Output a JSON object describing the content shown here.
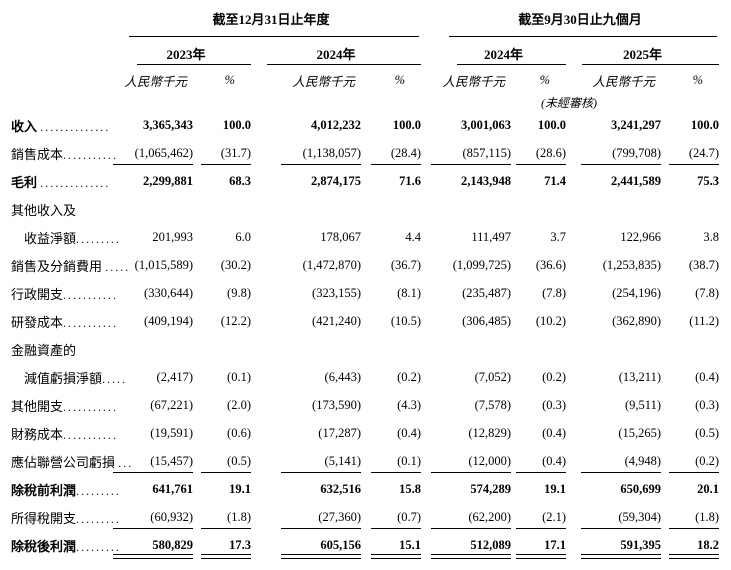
{
  "table": {
    "groups": [
      {
        "title": "截至12月31日止年度",
        "years": [
          "2023年",
          "2024年"
        ]
      },
      {
        "title": "截至9月30日止九個月",
        "years": [
          "2024年",
          "2025年"
        ]
      }
    ],
    "unit_label": "人民幣千元",
    "pct_label": "%",
    "unaudited_note": "(未經審核)",
    "rows": [
      {
        "label": "收入 ",
        "leader": "..............",
        "bold": true,
        "values": [
          "3,365,343",
          "100.0",
          "4,012,232",
          "100.0",
          "3,001,063",
          "100.0",
          "3,241,297",
          "100.0"
        ]
      },
      {
        "label": "銷售成本",
        "leader": "...........",
        "rule": "single",
        "values": [
          "(1,065,462)",
          "(31.7)",
          "(1,138,057)",
          "(28.4)",
          "(857,115)",
          "(28.6)",
          "(799,708)",
          "(24.7)"
        ]
      },
      {
        "label": "毛利 ",
        "leader": "..............",
        "bold": true,
        "values": [
          "2,299,881",
          "68.3",
          "2,874,175",
          "71.6",
          "2,143,948",
          "71.4",
          "2,441,589",
          "75.3"
        ]
      },
      {
        "label": "其他收入及",
        "leader": "",
        "values": null
      },
      {
        "label": "收益淨額",
        "leader": ".........",
        "indent": true,
        "values": [
          "201,993",
          "6.0",
          "178,067",
          "4.4",
          "111,497",
          "3.7",
          "122,966",
          "3.8"
        ]
      },
      {
        "label": "銷售及分銷費用 ",
        "leader": ".....",
        "values": [
          "(1,015,589)",
          "(30.2)",
          "(1,472,870)",
          "(36.7)",
          "(1,099,725)",
          "(36.6)",
          "(1,253,835)",
          "(38.7)"
        ]
      },
      {
        "label": "行政開支",
        "leader": "...........",
        "values": [
          "(330,644)",
          "(9.8)",
          "(323,155)",
          "(8.1)",
          "(235,487)",
          "(7.8)",
          "(254,196)",
          "(7.8)"
        ]
      },
      {
        "label": "研發成本",
        "leader": "...........",
        "values": [
          "(409,194)",
          "(12.2)",
          "(421,240)",
          "(10.5)",
          "(306,485)",
          "(10.2)",
          "(362,890)",
          "(11.2)"
        ]
      },
      {
        "label": "金融資產的",
        "leader": "",
        "values": null
      },
      {
        "label": "減值虧損淨額",
        "leader": ".....",
        "indent": true,
        "values": [
          "(2,417)",
          "(0.1)",
          "(6,443)",
          "(0.2)",
          "(7,052)",
          "(0.2)",
          "(13,211)",
          "(0.4)"
        ]
      },
      {
        "label": "其他開支",
        "leader": "...........",
        "values": [
          "(67,221)",
          "(2.0)",
          "(173,590)",
          "(4.3)",
          "(7,578)",
          "(0.3)",
          "(9,511)",
          "(0.3)"
        ]
      },
      {
        "label": "財務成本",
        "leader": "...........",
        "values": [
          "(19,591)",
          "(0.6)",
          "(17,287)",
          "(0.4)",
          "(12,829)",
          "(0.4)",
          "(15,265)",
          "(0.5)"
        ]
      },
      {
        "label": "應佔聯營公司虧損 ",
        "leader": "...",
        "rule": "single",
        "values": [
          "(15,457)",
          "(0.5)",
          "(5,141)",
          "(0.1)",
          "(12,000)",
          "(0.4)",
          "(4,948)",
          "(0.2)"
        ]
      },
      {
        "label": "除稅前利潤",
        "leader": ".........",
        "bold": true,
        "values": [
          "641,761",
          "19.1",
          "632,516",
          "15.8",
          "574,289",
          "19.1",
          "650,699",
          "20.1"
        ]
      },
      {
        "label": "所得稅開支",
        "leader": ".........",
        "rule": "single",
        "values": [
          "(60,932)",
          "(1.8)",
          "(27,360)",
          "(0.7)",
          "(62,200)",
          "(2.1)",
          "(59,304)",
          "(1.8)"
        ]
      },
      {
        "label": "除稅後利潤",
        "leader": ".........",
        "bold": true,
        "rule": "double",
        "values": [
          "580,829",
          "17.3",
          "605,156",
          "15.1",
          "512,089",
          "17.1",
          "591,395",
          "18.2"
        ]
      }
    ]
  }
}
